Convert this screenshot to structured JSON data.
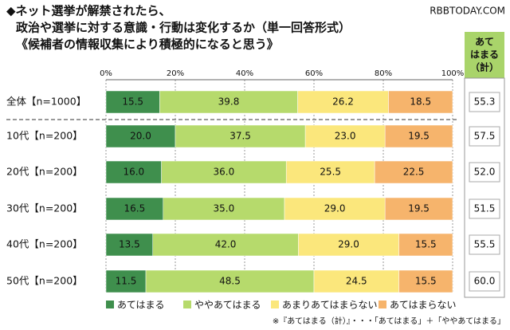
{
  "chart_data": {
    "type": "stacked-bar-horizontal",
    "title_lines": [
      "◆ネット選挙が解禁されたら、",
      "政治や選挙に対する意識・行動は変化するか（単一回答形式）",
      "《候補者の情報収集により積極的になると思う》"
    ],
    "watermark": "RBBTODAY.COM",
    "categories": [
      "全体【n=1000】",
      "10代【n=200】",
      "20代【n=200】",
      "30代【n=200】",
      "40代【n=200】",
      "50代【n=200】"
    ],
    "series": [
      {
        "name": "あてはまる",
        "color": "#3f8f4d",
        "values": [
          15.5,
          20.0,
          16.0,
          16.5,
          13.5,
          11.5
        ],
        "value_labels": [
          "15.5",
          "20.0",
          "16.0",
          "16.5",
          "13.5",
          "11.5"
        ]
      },
      {
        "name": "ややあてはまる",
        "color": "#b6da6c",
        "values": [
          39.8,
          37.5,
          36.0,
          35.0,
          42.0,
          48.5
        ],
        "value_labels": [
          "39.8",
          "37.5",
          "36.0",
          "35.0",
          "42.0",
          "48.5"
        ]
      },
      {
        "name": "あまりあてはまらない",
        "color": "#fbe77c",
        "values": [
          26.2,
          23.0,
          25.5,
          29.0,
          29.0,
          24.5
        ],
        "value_labels": [
          "26.2",
          "23.0",
          "25.5",
          "29.0",
          "29.0",
          "24.5"
        ]
      },
      {
        "name": "あてはまらない",
        "color": "#f6b46c",
        "values": [
          18.5,
          19.5,
          22.5,
          19.5,
          15.5,
          15.5
        ],
        "value_labels": [
          "18.5",
          "19.5",
          "22.5",
          "19.5",
          "15.5",
          "15.5"
        ]
      }
    ],
    "xlim": [
      0,
      100
    ],
    "xticks": [
      {
        "value": 0,
        "label": "0%"
      },
      {
        "value": 20,
        "label": "20%"
      },
      {
        "value": 40,
        "label": "40%"
      },
      {
        "value": 60,
        "label": "60%"
      },
      {
        "value": 80,
        "label": "80%"
      },
      {
        "value": 100,
        "label": "100%"
      }
    ],
    "total_header": [
      "あて",
      "はまる",
      "（計）"
    ],
    "totals": {
      "values": [
        55.3,
        57.5,
        52.0,
        51.5,
        55.5,
        60.0
      ],
      "value_labels": [
        "55.3",
        "57.5",
        "52.0",
        "51.5",
        "55.5",
        "60.0"
      ]
    },
    "footnote": "※『あてはまる（計）』・・・「あてはまる」＋「ややあてはまる」"
  }
}
